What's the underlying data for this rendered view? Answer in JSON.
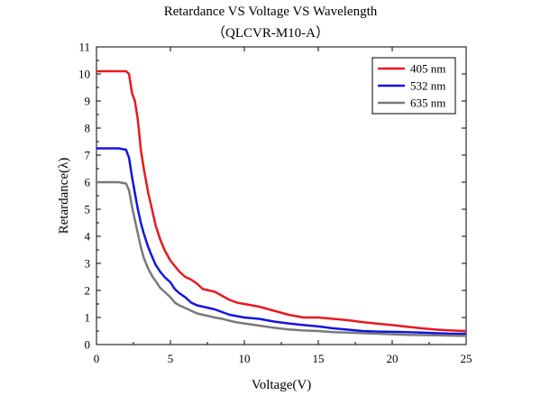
{
  "chart_data": {
    "type": "line",
    "title": "Retardance VS Voltage VS Wavelength",
    "subtitle": "（QLCVR-M10-A）",
    "xlabel": "Voltage(V)",
    "ylabel": "Retardance(λ)",
    "xlim": [
      0,
      25
    ],
    "ylim": [
      0,
      11
    ],
    "xticks": [
      0,
      5,
      10,
      15,
      20,
      25
    ],
    "yticks": [
      0,
      1,
      2,
      3,
      4,
      5,
      6,
      7,
      8,
      9,
      10,
      11
    ],
    "grid": false,
    "legend_position": "top-right",
    "series": [
      {
        "name": "405 nm",
        "color": "#e8191f",
        "x": [
          0,
          1.5,
          2.0,
          2.2,
          2.4,
          2.6,
          2.8,
          3.0,
          3.2,
          3.5,
          3.8,
          4.0,
          4.3,
          4.6,
          5.0,
          5.3,
          5.6,
          6.0,
          6.4,
          6.8,
          7.2,
          7.6,
          8.0,
          8.5,
          9.0,
          9.5,
          10,
          11,
          12,
          13,
          14,
          15,
          16,
          17,
          18,
          19,
          20,
          21,
          22,
          23,
          24,
          25
        ],
        "values": [
          10.1,
          10.1,
          10.1,
          10.0,
          9.3,
          9.0,
          8.3,
          7.2,
          6.5,
          5.6,
          4.9,
          4.4,
          3.9,
          3.5,
          3.1,
          2.9,
          2.7,
          2.5,
          2.4,
          2.25,
          2.05,
          2.0,
          1.95,
          1.8,
          1.65,
          1.55,
          1.5,
          1.4,
          1.25,
          1.1,
          1.0,
          1.0,
          0.95,
          0.9,
          0.83,
          0.77,
          0.72,
          0.66,
          0.6,
          0.55,
          0.52,
          0.5
        ]
      },
      {
        "name": "532 nm",
        "color": "#1414e0",
        "x": [
          0,
          1.5,
          2.0,
          2.2,
          2.4,
          2.6,
          2.8,
          3.0,
          3.2,
          3.5,
          3.8,
          4.0,
          4.3,
          4.6,
          5.0,
          5.3,
          5.6,
          6.0,
          6.4,
          6.8,
          7.2,
          7.6,
          8.0,
          8.5,
          9.0,
          9.5,
          10,
          11,
          12,
          13,
          14,
          15,
          16,
          17,
          18,
          19,
          20,
          21,
          22,
          23,
          24,
          25
        ],
        "values": [
          7.25,
          7.25,
          7.2,
          6.9,
          6.2,
          5.6,
          5.0,
          4.5,
          4.1,
          3.6,
          3.2,
          2.95,
          2.7,
          2.5,
          2.3,
          2.05,
          1.9,
          1.75,
          1.55,
          1.45,
          1.4,
          1.35,
          1.3,
          1.2,
          1.1,
          1.05,
          1.0,
          0.95,
          0.85,
          0.78,
          0.72,
          0.67,
          0.6,
          0.55,
          0.5,
          0.48,
          0.47,
          0.46,
          0.44,
          0.42,
          0.4,
          0.4
        ]
      },
      {
        "name": "635 nm",
        "color": "#7a7a7a",
        "x": [
          0,
          1.5,
          2.0,
          2.2,
          2.4,
          2.6,
          2.8,
          3.0,
          3.2,
          3.5,
          3.8,
          4.0,
          4.3,
          4.6,
          5.0,
          5.3,
          5.6,
          6.0,
          6.4,
          6.8,
          7.2,
          7.6,
          8.0,
          8.5,
          9.0,
          9.5,
          10,
          11,
          12,
          13,
          14,
          15,
          16,
          17,
          18,
          19,
          20,
          21,
          22,
          23,
          24,
          25
        ],
        "values": [
          6.0,
          6.0,
          5.95,
          5.7,
          5.1,
          4.6,
          4.1,
          3.6,
          3.2,
          2.8,
          2.5,
          2.35,
          2.1,
          1.95,
          1.75,
          1.55,
          1.45,
          1.35,
          1.25,
          1.15,
          1.1,
          1.05,
          1.0,
          0.95,
          0.88,
          0.82,
          0.78,
          0.7,
          0.62,
          0.56,
          0.52,
          0.5,
          0.46,
          0.44,
          0.42,
          0.4,
          0.38,
          0.36,
          0.35,
          0.34,
          0.33,
          0.32
        ]
      }
    ]
  }
}
